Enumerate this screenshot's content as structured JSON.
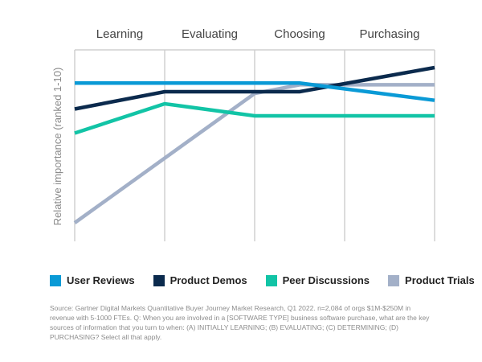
{
  "chart_data": {
    "type": "line",
    "categories": [
      "Learning",
      "Evaluating",
      "Choosing",
      "Purchasing"
    ],
    "ylabel": "Relative importance (ranked 1-10)",
    "ylim": [
      1,
      10
    ],
    "grid": "vertical",
    "legend_position": "bottom",
    "series": [
      {
        "name": "User Reviews",
        "color": "#0a9ad6",
        "x": [
          0,
          1.0,
          2.5,
          4.0
        ],
        "values": [
          9.1,
          9.1,
          9.1,
          8.1
        ]
      },
      {
        "name": "Product Demos",
        "color": "#0b2a4d",
        "x": [
          0,
          1.0,
          2.0,
          2.5,
          4.0
        ],
        "values": [
          7.6,
          8.6,
          8.6,
          8.6,
          10.0
        ]
      },
      {
        "name": "Peer Discussions",
        "color": "#12c4a6",
        "x": [
          0,
          1.0,
          2.0,
          2.5,
          4.0
        ],
        "values": [
          6.2,
          7.9,
          7.2,
          7.2,
          7.2
        ]
      },
      {
        "name": "Product Trials",
        "color": "#a3b0c8",
        "x": [
          0,
          2.0,
          2.5,
          4.0
        ],
        "values": [
          1.0,
          8.5,
          9.0,
          9.0
        ]
      }
    ]
  },
  "footnote": "Source: Gartner Digital Markets Quantitative Buyer Journey Market Research, Q1 2022. n=2,084 of orgs $1M-$250M in revenue with 5-1000 FTEs. Q: When you are involved in a [SOFTWARE TYPE] business software purchase, what are the key sources of information that you turn to when: (A) INITIALLY LEARNING; (B) EVALUATING; (C) DETERMINING; (D) PURCHASING? Select all that apply."
}
